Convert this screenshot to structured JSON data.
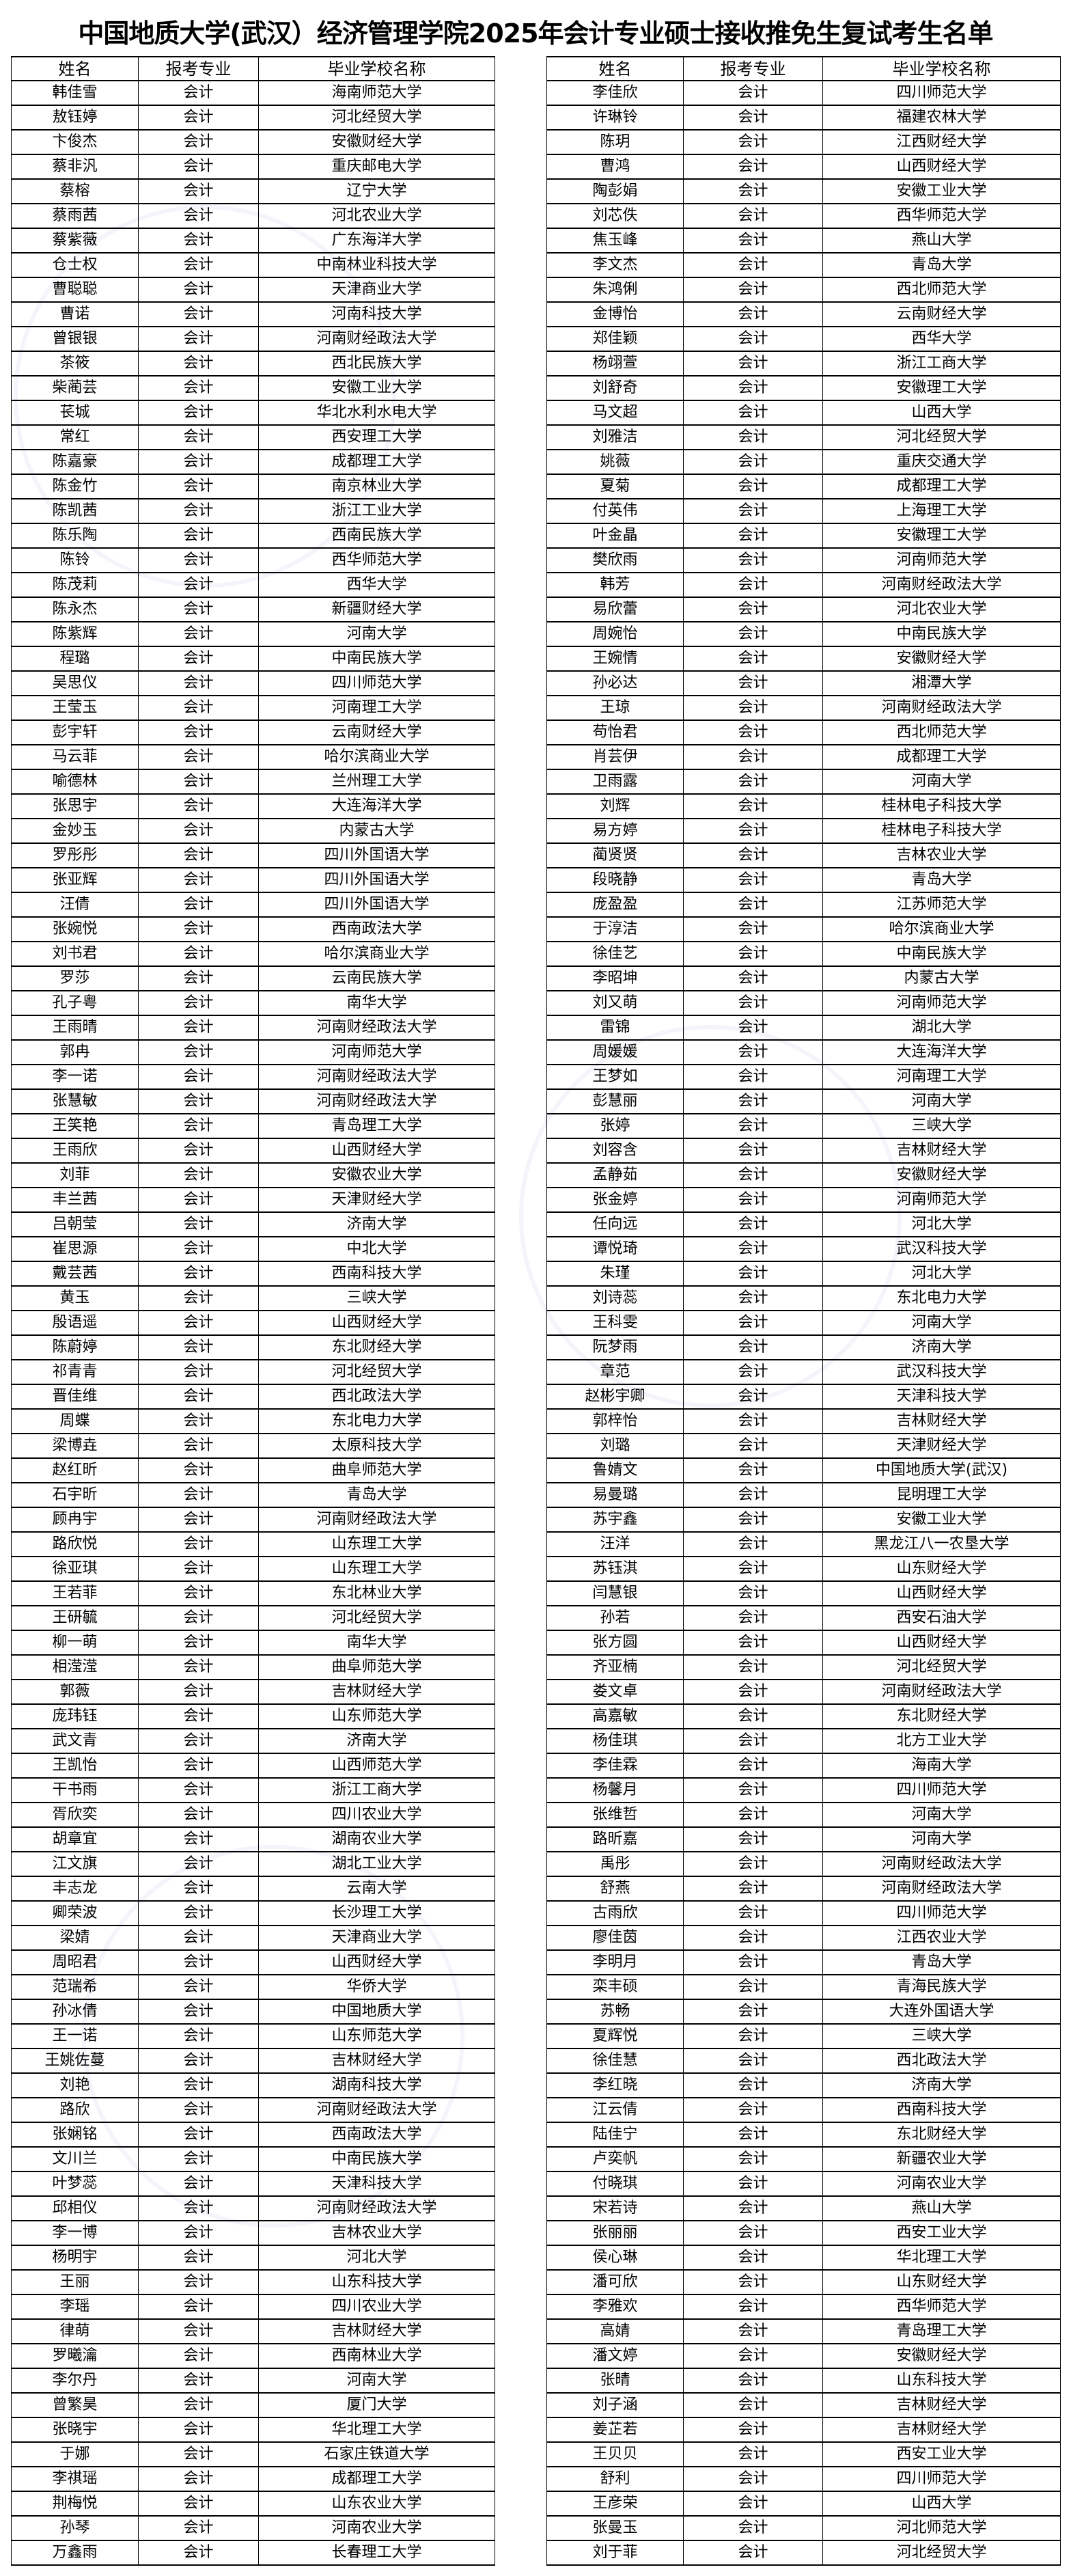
{
  "title": "中国地质大学(武汉）经济管理学院2025年会计专业硕士接收推免生复试考生名单",
  "columns": [
    "姓名",
    "报考专业",
    "毕业学校名称"
  ],
  "left_rows": [
    [
      "韩佳雪",
      "会计",
      "海南师范大学"
    ],
    [
      "敖钰婷",
      "会计",
      "河北经贸大学"
    ],
    [
      "卞俊杰",
      "会计",
      "安徽财经大学"
    ],
    [
      "蔡非汎",
      "会计",
      "重庆邮电大学"
    ],
    [
      "蔡榕",
      "会计",
      "辽宁大学"
    ],
    [
      "蔡雨茜",
      "会计",
      "河北农业大学"
    ],
    [
      "蔡紫薇",
      "会计",
      "广东海洋大学"
    ],
    [
      "仓士权",
      "会计",
      "中南林业科技大学"
    ],
    [
      "曹聪聪",
      "会计",
      "天津商业大学"
    ],
    [
      "曹诺",
      "会计",
      "河南科技大学"
    ],
    [
      "曾银银",
      "会计",
      "河南财经政法大学"
    ],
    [
      "茶筱",
      "会计",
      "西北民族大学"
    ],
    [
      "柴蔺芸",
      "会计",
      "安徽工业大学"
    ],
    [
      "苌城",
      "会计",
      "华北水利水电大学"
    ],
    [
      "常红",
      "会计",
      "西安理工大学"
    ],
    [
      "陈嘉豪",
      "会计",
      "成都理工大学"
    ],
    [
      "陈金竹",
      "会计",
      "南京林业大学"
    ],
    [
      "陈凯茜",
      "会计",
      "浙江工业大学"
    ],
    [
      "陈乐陶",
      "会计",
      "西南民族大学"
    ],
    [
      "陈铃",
      "会计",
      "西华师范大学"
    ],
    [
      "陈茂莉",
      "会计",
      "西华大学"
    ],
    [
      "陈永杰",
      "会计",
      "新疆财经大学"
    ],
    [
      "陈紫辉",
      "会计",
      "河南大学"
    ],
    [
      "程璐",
      "会计",
      "中南民族大学"
    ],
    [
      "吴思仪",
      "会计",
      "四川师范大学"
    ],
    [
      "王莹玉",
      "会计",
      "河南理工大学"
    ],
    [
      "彭宇轩",
      "会计",
      "云南财经大学"
    ],
    [
      "马云菲",
      "会计",
      "哈尔滨商业大学"
    ],
    [
      "喻德林",
      "会计",
      "兰州理工大学"
    ],
    [
      "张思宇",
      "会计",
      "大连海洋大学"
    ],
    [
      "金妙玉",
      "会计",
      "内蒙古大学"
    ],
    [
      "罗彤彤",
      "会计",
      "四川外国语大学"
    ],
    [
      "张亚辉",
      "会计",
      "四川外国语大学"
    ],
    [
      "汪倩",
      "会计",
      "四川外国语大学"
    ],
    [
      "张婉悦",
      "会计",
      "西南政法大学"
    ],
    [
      "刘书君",
      "会计",
      "哈尔滨商业大学"
    ],
    [
      "罗莎",
      "会计",
      "云南民族大学"
    ],
    [
      "孔子粤",
      "会计",
      "南华大学"
    ],
    [
      "王雨晴",
      "会计",
      "河南财经政法大学"
    ],
    [
      "郭冉",
      "会计",
      "河南师范大学"
    ],
    [
      "李一诺",
      "会计",
      "河南财经政法大学"
    ],
    [
      "张慧敏",
      "会计",
      "河南财经政法大学"
    ],
    [
      "王笑艳",
      "会计",
      "青岛理工大学"
    ],
    [
      "王雨欣",
      "会计",
      "山西财经大学"
    ],
    [
      "刘菲",
      "会计",
      "安徽农业大学"
    ],
    [
      "丰兰茜",
      "会计",
      "天津财经大学"
    ],
    [
      "吕朝莹",
      "会计",
      "济南大学"
    ],
    [
      "崔思源",
      "会计",
      "中北大学"
    ],
    [
      "戴芸茜",
      "会计",
      "西南科技大学"
    ],
    [
      "黄玉",
      "会计",
      "三峡大学"
    ],
    [
      "殷语遥",
      "会计",
      "山西财经大学"
    ],
    [
      "陈蔚婷",
      "会计",
      "东北财经大学"
    ],
    [
      "祁青青",
      "会计",
      "河北经贸大学"
    ],
    [
      "晋佳维",
      "会计",
      "西北政法大学"
    ],
    [
      "周蝶",
      "会计",
      "东北电力大学"
    ],
    [
      "梁博垚",
      "会计",
      "太原科技大学"
    ],
    [
      "赵红昕",
      "会计",
      "曲阜师范大学"
    ],
    [
      "石宇昕",
      "会计",
      "青岛大学"
    ],
    [
      "顾冉宇",
      "会计",
      "河南财经政法大学"
    ],
    [
      "路欣悦",
      "会计",
      "山东理工大学"
    ],
    [
      "徐亚琪",
      "会计",
      "山东理工大学"
    ],
    [
      "王若菲",
      "会计",
      "东北林业大学"
    ],
    [
      "王研毓",
      "会计",
      "河北经贸大学"
    ],
    [
      "柳一萌",
      "会计",
      "南华大学"
    ],
    [
      "相滢滢",
      "会计",
      "曲阜师范大学"
    ],
    [
      "郭薇",
      "会计",
      "吉林财经大学"
    ],
    [
      "庞玮钰",
      "会计",
      "山东师范大学"
    ],
    [
      "武文青",
      "会计",
      "济南大学"
    ],
    [
      "王凯怡",
      "会计",
      "山西师范大学"
    ],
    [
      "干书雨",
      "会计",
      "浙江工商大学"
    ],
    [
      "胥欣奕",
      "会计",
      "四川农业大学"
    ],
    [
      "胡章宜",
      "会计",
      "湖南农业大学"
    ],
    [
      "江文旗",
      "会计",
      "湖北工业大学"
    ],
    [
      "丰志龙",
      "会计",
      "云南大学"
    ],
    [
      "卿荣波",
      "会计",
      "长沙理工大学"
    ],
    [
      "梁婧",
      "会计",
      "天津商业大学"
    ],
    [
      "周昭君",
      "会计",
      "山西财经大学"
    ],
    [
      "范瑞希",
      "会计",
      "华侨大学"
    ],
    [
      "孙冰倩",
      "会计",
      "中国地质大学"
    ],
    [
      "王一诺",
      "会计",
      "山东师范大学"
    ],
    [
      "王姚佐蔓",
      "会计",
      "吉林财经大学"
    ],
    [
      "刘艳",
      "会计",
      "湖南科技大学"
    ],
    [
      "路欣",
      "会计",
      "河南财经政法大学"
    ],
    [
      "张娴铭",
      "会计",
      "西南政法大学"
    ],
    [
      "文川兰",
      "会计",
      "中南民族大学"
    ],
    [
      "叶梦蕊",
      "会计",
      "天津科技大学"
    ],
    [
      "邱相仪",
      "会计",
      "河南财经政法大学"
    ],
    [
      "李一博",
      "会计",
      "吉林农业大学"
    ],
    [
      "杨明宇",
      "会计",
      "河北大学"
    ],
    [
      "王丽",
      "会计",
      "山东科技大学"
    ],
    [
      "李瑶",
      "会计",
      "四川农业大学"
    ],
    [
      "律萌",
      "会计",
      "吉林财经大学"
    ],
    [
      "罗曦瀹",
      "会计",
      "西南林业大学"
    ],
    [
      "李尔丹",
      "会计",
      "河南大学"
    ],
    [
      "曾繁昊",
      "会计",
      "厦门大学"
    ],
    [
      "张晓宇",
      "会计",
      "华北理工大学"
    ],
    [
      "于娜",
      "会计",
      "石家庄铁道大学"
    ],
    [
      "李祺瑶",
      "会计",
      "成都理工大学"
    ],
    [
      "荆梅悦",
      "会计",
      "山东农业大学"
    ],
    [
      "孙琴",
      "会计",
      "河南农业大学"
    ],
    [
      "万鑫雨",
      "会计",
      "长春理工大学"
    ]
  ],
  "right_rows": [
    [
      "李佳欣",
      "会计",
      "四川师范大学"
    ],
    [
      "许琳铃",
      "会计",
      "福建农林大学"
    ],
    [
      "陈玥",
      "会计",
      "江西财经大学"
    ],
    [
      "曹鸿",
      "会计",
      "山西财经大学"
    ],
    [
      "陶彭娟",
      "会计",
      "安徽工业大学"
    ],
    [
      "刘芯佚",
      "会计",
      "西华师范大学"
    ],
    [
      "焦玉峰",
      "会计",
      "燕山大学"
    ],
    [
      "李文杰",
      "会计",
      "青岛大学"
    ],
    [
      "朱鸿俐",
      "会计",
      "西北师范大学"
    ],
    [
      "金博怡",
      "会计",
      "云南财经大学"
    ],
    [
      "郑佳颖",
      "会计",
      "西华大学"
    ],
    [
      "杨翊萱",
      "会计",
      "浙江工商大学"
    ],
    [
      "刘舒奇",
      "会计",
      "安徽理工大学"
    ],
    [
      "马文超",
      "会计",
      "山西大学"
    ],
    [
      "刘雅洁",
      "会计",
      "河北经贸大学"
    ],
    [
      "姚薇",
      "会计",
      "重庆交通大学"
    ],
    [
      "夏菊",
      "会计",
      "成都理工大学"
    ],
    [
      "付英伟",
      "会计",
      "上海理工大学"
    ],
    [
      "叶金晶",
      "会计",
      "安徽理工大学"
    ],
    [
      "樊欣雨",
      "会计",
      "河南师范大学"
    ],
    [
      "韩芳",
      "会计",
      "河南财经政法大学"
    ],
    [
      "易欣蕾",
      "会计",
      "河北农业大学"
    ],
    [
      "周婉怡",
      "会计",
      "中南民族大学"
    ],
    [
      "王婉情",
      "会计",
      "安徽财经大学"
    ],
    [
      "孙必达",
      "会计",
      "湘潭大学"
    ],
    [
      "王琼",
      "会计",
      "河南财经政法大学"
    ],
    [
      "苟怡君",
      "会计",
      "西北师范大学"
    ],
    [
      "肖芸伊",
      "会计",
      "成都理工大学"
    ],
    [
      "卫雨露",
      "会计",
      "河南大学"
    ],
    [
      "刘辉",
      "会计",
      "桂林电子科技大学"
    ],
    [
      "易方婷",
      "会计",
      "桂林电子科技大学"
    ],
    [
      "蔺贤贤",
      "会计",
      "吉林农业大学"
    ],
    [
      "段晓静",
      "会计",
      "青岛大学"
    ],
    [
      "庞盈盈",
      "会计",
      "江苏师范大学"
    ],
    [
      "于淳洁",
      "会计",
      "哈尔滨商业大学"
    ],
    [
      "徐佳艺",
      "会计",
      "中南民族大学"
    ],
    [
      "李昭坤",
      "会计",
      "内蒙古大学"
    ],
    [
      "刘又萌",
      "会计",
      "河南师范大学"
    ],
    [
      "雷锦",
      "会计",
      "湖北大学"
    ],
    [
      "周媛媛",
      "会计",
      "大连海洋大学"
    ],
    [
      "王梦如",
      "会计",
      "河南理工大学"
    ],
    [
      "彭慧丽",
      "会计",
      "河南大学"
    ],
    [
      "张婷",
      "会计",
      "三峡大学"
    ],
    [
      "刘容含",
      "会计",
      "吉林财经大学"
    ],
    [
      "孟静茹",
      "会计",
      "安徽财经大学"
    ],
    [
      "张金婷",
      "会计",
      "河南师范大学"
    ],
    [
      "任向远",
      "会计",
      "河北大学"
    ],
    [
      "谭悦琦",
      "会计",
      "武汉科技大学"
    ],
    [
      "朱瑾",
      "会计",
      "河北大学"
    ],
    [
      "刘诗蕊",
      "会计",
      "东北电力大学"
    ],
    [
      "王科雯",
      "会计",
      "河南大学"
    ],
    [
      "阮梦雨",
      "会计",
      "济南大学"
    ],
    [
      "章范",
      "会计",
      "武汉科技大学"
    ],
    [
      "赵彬宇卿",
      "会计",
      "天津科技大学"
    ],
    [
      "郭梓怡",
      "会计",
      "吉林财经大学"
    ],
    [
      "刘璐",
      "会计",
      "天津财经大学"
    ],
    [
      "鲁婧文",
      "会计",
      "中国地质大学(武汉)"
    ],
    [
      "易曼璐",
      "会计",
      "昆明理工大学"
    ],
    [
      "苏宇鑫",
      "会计",
      "安徽工业大学"
    ],
    [
      "汪洋",
      "会计",
      "黑龙江八一农垦大学"
    ],
    [
      "苏钰淇",
      "会计",
      "山东财经大学"
    ],
    [
      "闫慧银",
      "会计",
      "山西财经大学"
    ],
    [
      "孙若",
      "会计",
      "西安石油大学"
    ],
    [
      "张方圆",
      "会计",
      "山西财经大学"
    ],
    [
      "齐亚楠",
      "会计",
      "河北经贸大学"
    ],
    [
      "娄文卓",
      "会计",
      "河南财经政法大学"
    ],
    [
      "高嘉敏",
      "会计",
      "东北财经大学"
    ],
    [
      "杨佳琪",
      "会计",
      "北方工业大学"
    ],
    [
      "李佳霖",
      "会计",
      "海南大学"
    ],
    [
      "杨馨月",
      "会计",
      "四川师范大学"
    ],
    [
      "张维哲",
      "会计",
      "河南大学"
    ],
    [
      "路昕嘉",
      "会计",
      "河南大学"
    ],
    [
      "禹彤",
      "会计",
      "河南财经政法大学"
    ],
    [
      "舒燕",
      "会计",
      "河南财经政法大学"
    ],
    [
      "古雨欣",
      "会计",
      "四川师范大学"
    ],
    [
      "廖佳茵",
      "会计",
      "江西农业大学"
    ],
    [
      "李明月",
      "会计",
      "青岛大学"
    ],
    [
      "栾丰硕",
      "会计",
      "青海民族大学"
    ],
    [
      "苏畅",
      "会计",
      "大连外国语大学"
    ],
    [
      "夏辉悦",
      "会计",
      "三峡大学"
    ],
    [
      "徐佳慧",
      "会计",
      "西北政法大学"
    ],
    [
      "李红晓",
      "会计",
      "济南大学"
    ],
    [
      "江云倩",
      "会计",
      "西南科技大学"
    ],
    [
      "陆佳宁",
      "会计",
      "东北财经大学"
    ],
    [
      "卢奕帆",
      "会计",
      "新疆农业大学"
    ],
    [
      "付晓琪",
      "会计",
      "河南农业大学"
    ],
    [
      "宋若诗",
      "会计",
      "燕山大学"
    ],
    [
      "张丽丽",
      "会计",
      "西安工业大学"
    ],
    [
      "侯心琳",
      "会计",
      "华北理工大学"
    ],
    [
      "潘可欣",
      "会计",
      "山东财经大学"
    ],
    [
      "李雅欢",
      "会计",
      "西华师范大学"
    ],
    [
      "高婧",
      "会计",
      "青岛理工大学"
    ],
    [
      "潘文婷",
      "会计",
      "安徽财经大学"
    ],
    [
      "张晴",
      "会计",
      "山东科技大学"
    ],
    [
      "刘子涵",
      "会计",
      "吉林财经大学"
    ],
    [
      "姜芷若",
      "会计",
      "吉林财经大学"
    ],
    [
      "王贝贝",
      "会计",
      "西安工业大学"
    ],
    [
      "舒利",
      "会计",
      "四川师范大学"
    ],
    [
      "王彦荣",
      "会计",
      "山西大学"
    ],
    [
      "张曼玉",
      "会计",
      "河北师范大学"
    ],
    [
      "刘于菲",
      "会计",
      "河北经贸大学"
    ]
  ]
}
